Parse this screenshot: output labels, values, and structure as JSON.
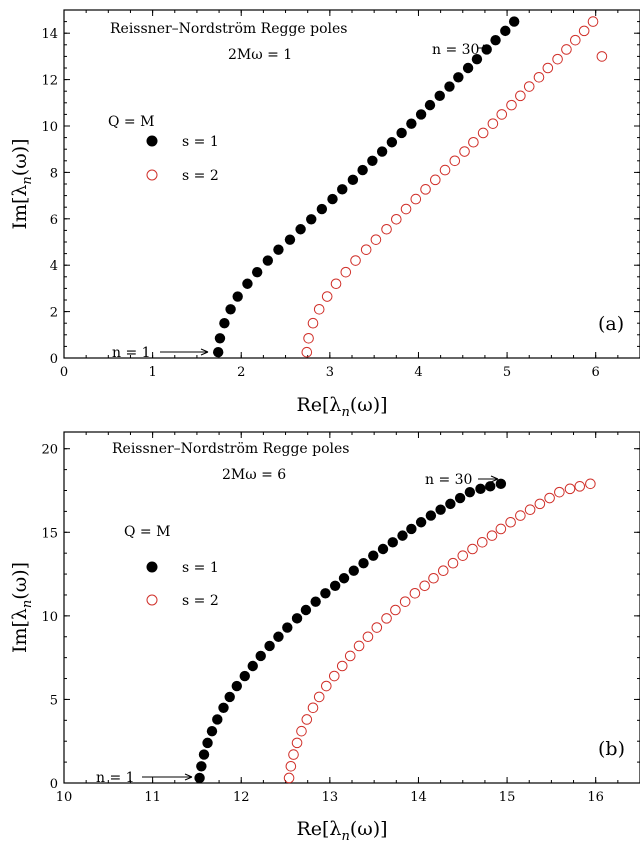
{
  "colors": {
    "filled": "#000000",
    "open": "#d0302a",
    "axis": "#000000"
  },
  "chart_data": [
    {
      "type": "scatter",
      "title": "Reissner–Nordström Regge poles",
      "subtitle": "2Mω = 1",
      "panel": "(a)",
      "legend_title": "Q = M",
      "legend_position": "upper-left",
      "xlabel": "Re[λ",
      "xlabel_sub": "n",
      "xlabel_tail": "(ω)]",
      "ylabel": "Im[λ",
      "ylabel_sub": "n",
      "ylabel_tail": "(ω)]",
      "xlim": [
        0,
        6.5
      ],
      "ylim": [
        0,
        15
      ],
      "xticks": [
        "0",
        "1",
        "2",
        "3",
        "4",
        "5",
        "6"
      ],
      "yticks": [
        "0",
        "2",
        "4",
        "6",
        "8",
        "10",
        "12",
        "14"
      ],
      "annotation_top": "n = 30",
      "annotation_bottom": "n = 1",
      "series": [
        {
          "name": "s = 1",
          "marker": "filled",
          "x": [
            1.74,
            1.76,
            1.81,
            1.88,
            1.96,
            2.07,
            2.18,
            2.3,
            2.42,
            2.55,
            2.67,
            2.79,
            2.91,
            3.03,
            3.14,
            3.26,
            3.37,
            3.48,
            3.59,
            3.7,
            3.81,
            3.92,
            4.03,
            4.13,
            4.24,
            4.35,
            4.45,
            4.56,
            4.66,
            4.77,
            4.87,
            4.98,
            5.08
          ],
          "y": [
            0.25,
            0.85,
            1.5,
            2.1,
            2.65,
            3.2,
            3.7,
            4.2,
            4.67,
            5.1,
            5.55,
            5.98,
            6.42,
            6.85,
            7.27,
            7.68,
            8.1,
            8.5,
            8.9,
            9.3,
            9.7,
            10.1,
            10.5,
            10.9,
            11.3,
            11.7,
            12.1,
            12.5,
            12.88,
            13.3,
            13.7,
            14.1,
            14.5
          ]
        },
        {
          "name": "s = 2",
          "marker": "open",
          "x": [
            2.74,
            2.76,
            2.81,
            2.88,
            2.97,
            3.07,
            3.18,
            3.29,
            3.41,
            3.52,
            3.64,
            3.75,
            3.86,
            3.97,
            4.08,
            4.19,
            4.3,
            4.41,
            4.52,
            4.62,
            4.73,
            4.84,
            4.94,
            5.05,
            5.15,
            5.25,
            5.36,
            5.46,
            5.57,
            5.67,
            5.77,
            5.87,
            5.97,
            6.07
          ],
          "y": [
            0.25,
            0.85,
            1.5,
            2.1,
            2.65,
            3.2,
            3.7,
            4.2,
            4.67,
            5.1,
            5.55,
            5.98,
            6.42,
            6.85,
            7.27,
            7.68,
            8.1,
            8.5,
            8.9,
            9.3,
            9.7,
            10.1,
            10.5,
            10.9,
            11.3,
            11.7,
            12.1,
            12.5,
            12.88,
            13.3,
            13.7,
            14.1,
            14.5,
            13.0
          ]
        }
      ]
    },
    {
      "type": "scatter",
      "title": "Reissner–Nordström Regge poles",
      "subtitle": "2Mω = 6",
      "panel": "(b)",
      "legend_title": "Q = M",
      "legend_position": "upper-left",
      "xlabel": "Re[λ",
      "xlabel_sub": "n",
      "xlabel_tail": "(ω)]",
      "ylabel": "Im[λ",
      "ylabel_sub": "n",
      "ylabel_tail": "(ω)]",
      "xlim": [
        10,
        16.5
      ],
      "ylim": [
        0,
        21
      ],
      "xticks": [
        "10",
        "11",
        "12",
        "13",
        "14",
        "15",
        "16"
      ],
      "yticks": [
        "0",
        "5",
        "10",
        "15",
        "20"
      ],
      "annotation_top": "n = 30",
      "annotation_bottom": "n = 1",
      "series": [
        {
          "name": "s = 1",
          "marker": "filled",
          "x": [
            11.53,
            11.55,
            11.58,
            11.62,
            11.67,
            11.73,
            11.8,
            11.87,
            11.95,
            12.04,
            12.13,
            12.22,
            12.32,
            12.42,
            12.52,
            12.63,
            12.73,
            12.84,
            12.95,
            13.06,
            13.16,
            13.27,
            13.38,
            13.49,
            13.6,
            13.71,
            13.82,
            13.92,
            14.03,
            14.14,
            14.25,
            14.36,
            14.47,
            14.58,
            14.7,
            14.81,
            14.93
          ],
          "y": [
            0.3,
            1.0,
            1.7,
            2.4,
            3.1,
            3.8,
            4.5,
            5.15,
            5.8,
            6.4,
            7.0,
            7.6,
            8.2,
            8.75,
            9.3,
            9.85,
            10.35,
            10.85,
            11.35,
            11.8,
            12.25,
            12.7,
            13.15,
            13.6,
            14.0,
            14.4,
            14.8,
            15.2,
            15.6,
            16.0,
            16.35,
            16.7,
            17.05,
            17.4,
            17.6,
            17.75,
            17.9
          ]
        },
        {
          "name": "s = 2",
          "marker": "open",
          "x": [
            12.54,
            12.56,
            12.59,
            12.63,
            12.68,
            12.74,
            12.81,
            12.88,
            12.96,
            13.05,
            13.14,
            13.23,
            13.33,
            13.43,
            13.53,
            13.64,
            13.74,
            13.85,
            13.96,
            14.07,
            14.17,
            14.28,
            14.39,
            14.5,
            14.61,
            14.72,
            14.83,
            14.93,
            15.04,
            15.15,
            15.26,
            15.37,
            15.48,
            15.59,
            15.71,
            15.82,
            15.94
          ],
          "y": [
            0.3,
            1.0,
            1.7,
            2.4,
            3.1,
            3.8,
            4.5,
            5.15,
            5.8,
            6.4,
            7.0,
            7.6,
            8.2,
            8.75,
            9.3,
            9.85,
            10.35,
            10.85,
            11.35,
            11.8,
            12.25,
            12.7,
            13.15,
            13.6,
            14.0,
            14.4,
            14.8,
            15.2,
            15.6,
            16.0,
            16.35,
            16.7,
            17.05,
            17.4,
            17.6,
            17.75,
            17.9
          ]
        }
      ]
    }
  ]
}
